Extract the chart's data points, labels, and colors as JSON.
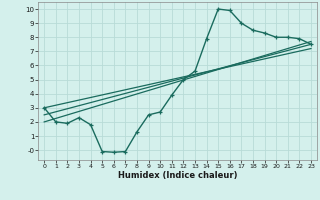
{
  "title": "",
  "xlabel": "Humidex (Indice chaleur)",
  "bg_color": "#d4f0ec",
  "grid_color": "#b8dbd7",
  "line_color": "#1a6b5e",
  "xlim": [
    -0.5,
    23.5
  ],
  "ylim": [
    -0.7,
    10.5
  ],
  "xticks": [
    0,
    1,
    2,
    3,
    4,
    5,
    6,
    7,
    8,
    9,
    10,
    11,
    12,
    13,
    14,
    15,
    16,
    17,
    18,
    19,
    20,
    21,
    22,
    23
  ],
  "yticks": [
    0,
    1,
    2,
    3,
    4,
    5,
    6,
    7,
    8,
    9,
    10
  ],
  "ytick_labels": [
    "-0",
    "1",
    "2",
    "3",
    "4",
    "5",
    "6",
    "7",
    "8",
    "9",
    "10"
  ],
  "curve1_x": [
    0,
    1,
    2,
    3,
    4,
    5,
    6,
    7,
    8,
    9,
    10,
    11,
    12,
    13,
    14,
    15,
    16,
    17,
    18,
    19,
    20,
    21,
    22,
    23
  ],
  "curve1_y": [
    3.0,
    2.0,
    1.9,
    2.3,
    1.8,
    -0.1,
    -0.15,
    -0.1,
    1.3,
    2.5,
    2.7,
    3.9,
    5.0,
    5.6,
    7.9,
    10.0,
    9.9,
    9.0,
    8.5,
    8.3,
    8.0,
    8.0,
    7.9,
    7.5
  ],
  "line2_x": [
    0,
    23
  ],
  "line2_y": [
    2.5,
    7.5
  ],
  "line3_x": [
    0,
    23
  ],
  "line3_y": [
    2.0,
    7.7
  ],
  "line4_x": [
    0,
    23
  ],
  "line4_y": [
    3.0,
    7.2
  ]
}
